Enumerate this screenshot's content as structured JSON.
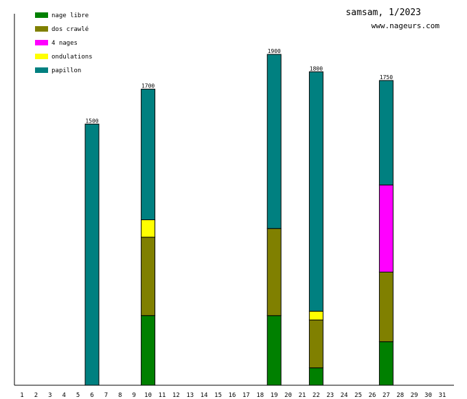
{
  "header": {
    "title": "samsam, 1/2023",
    "site": "www.nageurs.com"
  },
  "legend": [
    {
      "label": "nage libre",
      "color": "#008000"
    },
    {
      "label": "dos crawlé",
      "color": "#808000"
    },
    {
      "label": "4 nages",
      "color": "#ff00ff"
    },
    {
      "label": "ondulations",
      "color": "#ffff00"
    },
    {
      "label": "papillon",
      "color": "#008080"
    }
  ],
  "chart_data": {
    "type": "bar",
    "stacked": true,
    "title": "samsam, 1/2023",
    "xlabel": "",
    "ylabel": "",
    "categories": [
      "1",
      "2",
      "3",
      "4",
      "5",
      "6",
      "7",
      "8",
      "9",
      "10",
      "11",
      "12",
      "13",
      "14",
      "15",
      "16",
      "17",
      "18",
      "19",
      "20",
      "21",
      "22",
      "23",
      "24",
      "25",
      "26",
      "27",
      "28",
      "29",
      "30",
      "31"
    ],
    "ylim": [
      0,
      1900
    ],
    "series": [
      {
        "name": "nage libre",
        "color": "#008000",
        "values": [
          0,
          0,
          0,
          0,
          0,
          0,
          0,
          0,
          0,
          400,
          0,
          0,
          0,
          0,
          0,
          0,
          0,
          0,
          400,
          0,
          0,
          100,
          0,
          0,
          0,
          0,
          250,
          0,
          0,
          0,
          0
        ]
      },
      {
        "name": "dos crawlé",
        "color": "#808000",
        "values": [
          0,
          0,
          0,
          0,
          0,
          0,
          0,
          0,
          0,
          450,
          0,
          0,
          0,
          0,
          0,
          0,
          0,
          0,
          500,
          0,
          0,
          275,
          0,
          0,
          0,
          0,
          400,
          0,
          0,
          0,
          0
        ]
      },
      {
        "name": "4 nages",
        "color": "#ff00ff",
        "values": [
          0,
          0,
          0,
          0,
          0,
          0,
          0,
          0,
          0,
          0,
          0,
          0,
          0,
          0,
          0,
          0,
          0,
          0,
          0,
          0,
          0,
          0,
          0,
          0,
          0,
          0,
          500,
          0,
          0,
          0,
          0
        ]
      },
      {
        "name": "ondulations",
        "color": "#ffff00",
        "values": [
          0,
          0,
          0,
          0,
          0,
          0,
          0,
          0,
          0,
          100,
          0,
          0,
          0,
          0,
          0,
          0,
          0,
          0,
          0,
          0,
          0,
          50,
          0,
          0,
          0,
          0,
          0,
          0,
          0,
          0,
          0
        ]
      },
      {
        "name": "papillon",
        "color": "#008080",
        "values": [
          0,
          0,
          0,
          0,
          0,
          1500,
          0,
          0,
          0,
          750,
          0,
          0,
          0,
          0,
          0,
          0,
          0,
          0,
          1000,
          0,
          0,
          1375,
          0,
          0,
          0,
          0,
          600,
          0,
          0,
          0,
          0
        ]
      }
    ],
    "totals": [
      {
        "day": "6",
        "label": "1500"
      },
      {
        "day": "10",
        "label": "1700"
      },
      {
        "day": "19",
        "label": "1900"
      },
      {
        "day": "22",
        "label": "1800"
      },
      {
        "day": "27",
        "label": "1750"
      }
    ]
  }
}
